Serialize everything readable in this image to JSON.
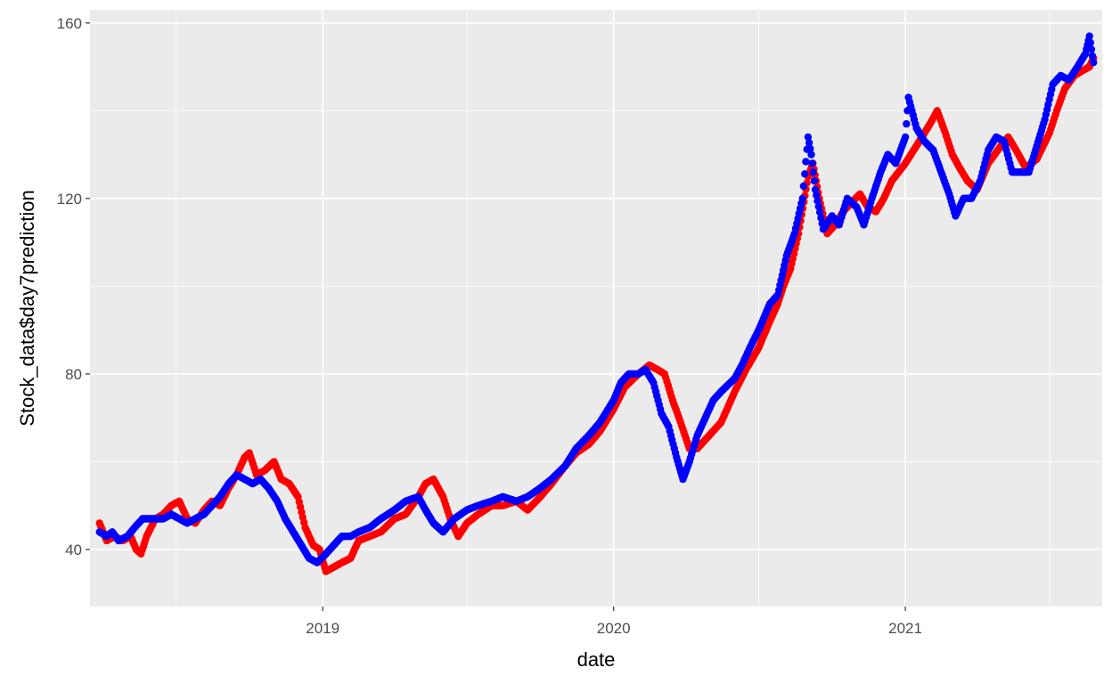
{
  "chart_data": {
    "type": "scatter",
    "title": "",
    "xlabel": "date",
    "ylabel": "Stock_data$day7prediction",
    "x_range": [
      "2018-03-15",
      "2021-09-05"
    ],
    "ylim": [
      27,
      163
    ],
    "x_ticks": [
      {
        "value": "2019-01-01",
        "label": "2019"
      },
      {
        "value": "2020-01-01",
        "label": "2020"
      },
      {
        "value": "2021-01-01",
        "label": "2021"
      }
    ],
    "y_ticks": [
      {
        "value": 40,
        "label": "40"
      },
      {
        "value": 80,
        "label": "80"
      },
      {
        "value": 120,
        "label": "120"
      },
      {
        "value": 160,
        "label": "160"
      }
    ],
    "grid": true,
    "panel_background": "#ebebeb",
    "grid_color": "#ffffff",
    "legend": "none",
    "series": [
      {
        "color": "#ff0000",
        "points": [
          [
            "2018-03-27",
            46
          ],
          [
            "2018-04-05",
            42
          ],
          [
            "2018-04-15",
            43
          ],
          [
            "2018-04-25",
            42
          ],
          [
            "2018-05-05",
            43
          ],
          [
            "2018-05-12",
            40
          ],
          [
            "2018-05-18",
            39
          ],
          [
            "2018-05-25",
            43
          ],
          [
            "2018-06-05",
            47
          ],
          [
            "2018-06-15",
            48
          ],
          [
            "2018-06-25",
            50
          ],
          [
            "2018-07-05",
            51
          ],
          [
            "2018-07-15",
            47
          ],
          [
            "2018-07-25",
            46
          ],
          [
            "2018-08-05",
            49
          ],
          [
            "2018-08-15",
            51
          ],
          [
            "2018-08-25",
            50
          ],
          [
            "2018-09-05",
            54
          ],
          [
            "2018-09-15",
            57
          ],
          [
            "2018-09-25",
            61
          ],
          [
            "2018-10-01",
            62
          ],
          [
            "2018-10-10",
            57
          ],
          [
            "2018-10-20",
            58
          ],
          [
            "2018-11-01",
            60
          ],
          [
            "2018-11-10",
            56
          ],
          [
            "2018-11-20",
            55
          ],
          [
            "2018-12-01",
            52
          ],
          [
            "2018-12-10",
            45
          ],
          [
            "2018-12-20",
            41
          ],
          [
            "2018-12-28",
            40
          ],
          [
            "2019-01-05",
            35
          ],
          [
            "2019-01-15",
            36
          ],
          [
            "2019-01-25",
            37
          ],
          [
            "2019-02-05",
            38
          ],
          [
            "2019-02-15",
            42
          ],
          [
            "2019-03-01",
            43
          ],
          [
            "2019-03-15",
            44
          ],
          [
            "2019-04-01",
            47
          ],
          [
            "2019-04-15",
            48
          ],
          [
            "2019-05-01",
            52
          ],
          [
            "2019-05-10",
            55
          ],
          [
            "2019-05-20",
            56
          ],
          [
            "2019-06-01",
            52
          ],
          [
            "2019-06-10",
            47
          ],
          [
            "2019-06-20",
            43
          ],
          [
            "2019-07-01",
            46
          ],
          [
            "2019-07-15",
            48
          ],
          [
            "2019-08-01",
            50
          ],
          [
            "2019-08-15",
            50
          ],
          [
            "2019-09-01",
            51
          ],
          [
            "2019-09-15",
            49
          ],
          [
            "2019-10-01",
            52
          ],
          [
            "2019-10-15",
            55
          ],
          [
            "2019-11-01",
            59
          ],
          [
            "2019-11-15",
            62
          ],
          [
            "2019-12-01",
            64
          ],
          [
            "2019-12-15",
            67
          ],
          [
            "2020-01-01",
            72
          ],
          [
            "2020-01-15",
            77
          ],
          [
            "2020-02-01",
            80
          ],
          [
            "2020-02-15",
            82
          ],
          [
            "2020-02-25",
            81
          ],
          [
            "2020-03-05",
            80
          ],
          [
            "2020-03-15",
            74
          ],
          [
            "2020-03-25",
            69
          ],
          [
            "2020-04-05",
            63
          ],
          [
            "2020-04-15",
            63
          ],
          [
            "2020-04-25",
            65
          ],
          [
            "2020-05-05",
            67
          ],
          [
            "2020-05-15",
            69
          ],
          [
            "2020-06-01",
            76
          ],
          [
            "2020-06-15",
            81
          ],
          [
            "2020-07-01",
            86
          ],
          [
            "2020-07-15",
            92
          ],
          [
            "2020-07-25",
            96
          ],
          [
            "2020-08-01",
            100
          ],
          [
            "2020-08-10",
            104
          ],
          [
            "2020-08-20",
            112
          ],
          [
            "2020-09-01",
            125
          ],
          [
            "2020-09-07",
            128
          ],
          [
            "2020-09-15",
            120
          ],
          [
            "2020-09-25",
            112
          ],
          [
            "2020-10-05",
            114
          ],
          [
            "2020-10-15",
            117
          ],
          [
            "2020-10-25",
            119
          ],
          [
            "2020-11-05",
            121
          ],
          [
            "2020-11-15",
            118
          ],
          [
            "2020-11-25",
            117
          ],
          [
            "2020-12-05",
            120
          ],
          [
            "2020-12-15",
            124
          ],
          [
            "2021-01-01",
            128
          ],
          [
            "2021-01-15",
            132
          ],
          [
            "2021-02-01",
            137
          ],
          [
            "2021-02-10",
            140
          ],
          [
            "2021-02-20",
            135
          ],
          [
            "2021-03-01",
            130
          ],
          [
            "2021-03-10",
            127
          ],
          [
            "2021-03-20",
            124
          ],
          [
            "2021-04-01",
            122
          ],
          [
            "2021-04-15",
            128
          ],
          [
            "2021-05-01",
            132
          ],
          [
            "2021-05-10",
            134
          ],
          [
            "2021-05-20",
            131
          ],
          [
            "2021-06-01",
            127
          ],
          [
            "2021-06-15",
            129
          ],
          [
            "2021-07-01",
            135
          ],
          [
            "2021-07-10",
            140
          ],
          [
            "2021-07-20",
            145
          ],
          [
            "2021-08-01",
            148
          ],
          [
            "2021-08-10",
            149
          ],
          [
            "2021-08-20",
            150
          ],
          [
            "2021-08-25",
            152
          ]
        ]
      },
      {
        "color": "#0000ff",
        "points": [
          [
            "2018-03-27",
            44
          ],
          [
            "2018-04-05",
            43
          ],
          [
            "2018-04-12",
            44
          ],
          [
            "2018-04-20",
            42
          ],
          [
            "2018-05-01",
            43
          ],
          [
            "2018-05-10",
            45
          ],
          [
            "2018-05-20",
            47
          ],
          [
            "2018-06-01",
            47
          ],
          [
            "2018-06-15",
            47
          ],
          [
            "2018-06-25",
            48
          ],
          [
            "2018-07-05",
            47
          ],
          [
            "2018-07-15",
            46
          ],
          [
            "2018-07-25",
            47
          ],
          [
            "2018-08-05",
            48
          ],
          [
            "2018-08-15",
            50
          ],
          [
            "2018-08-25",
            52
          ],
          [
            "2018-09-05",
            55
          ],
          [
            "2018-09-15",
            57
          ],
          [
            "2018-09-25",
            56
          ],
          [
            "2018-10-05",
            55
          ],
          [
            "2018-10-15",
            56
          ],
          [
            "2018-10-25",
            54
          ],
          [
            "2018-11-05",
            51
          ],
          [
            "2018-11-15",
            47
          ],
          [
            "2018-11-25",
            44
          ],
          [
            "2018-12-05",
            41
          ],
          [
            "2018-12-15",
            38
          ],
          [
            "2018-12-25",
            37
          ],
          [
            "2019-01-05",
            39
          ],
          [
            "2019-01-15",
            41
          ],
          [
            "2019-01-25",
            43
          ],
          [
            "2019-02-05",
            43
          ],
          [
            "2019-02-15",
            44
          ],
          [
            "2019-03-01",
            45
          ],
          [
            "2019-03-15",
            47
          ],
          [
            "2019-04-01",
            49
          ],
          [
            "2019-04-15",
            51
          ],
          [
            "2019-05-01",
            52
          ],
          [
            "2019-05-10",
            49
          ],
          [
            "2019-05-20",
            46
          ],
          [
            "2019-06-01",
            44
          ],
          [
            "2019-06-15",
            47
          ],
          [
            "2019-07-01",
            49
          ],
          [
            "2019-07-15",
            50
          ],
          [
            "2019-08-01",
            51
          ],
          [
            "2019-08-15",
            52
          ],
          [
            "2019-09-01",
            51
          ],
          [
            "2019-09-15",
            52
          ],
          [
            "2019-10-01",
            54
          ],
          [
            "2019-10-15",
            56
          ],
          [
            "2019-11-01",
            59
          ],
          [
            "2019-11-15",
            63
          ],
          [
            "2019-12-01",
            66
          ],
          [
            "2019-12-15",
            69
          ],
          [
            "2020-01-01",
            74
          ],
          [
            "2020-01-10",
            78
          ],
          [
            "2020-01-20",
            80
          ],
          [
            "2020-02-01",
            80
          ],
          [
            "2020-02-10",
            81
          ],
          [
            "2020-02-20",
            78
          ],
          [
            "2020-03-01",
            71
          ],
          [
            "2020-03-10",
            68
          ],
          [
            "2020-03-20",
            61
          ],
          [
            "2020-03-28",
            56
          ],
          [
            "2020-04-05",
            60
          ],
          [
            "2020-04-15",
            66
          ],
          [
            "2020-04-25",
            70
          ],
          [
            "2020-05-05",
            74
          ],
          [
            "2020-05-15",
            76
          ],
          [
            "2020-06-01",
            79
          ],
          [
            "2020-06-10",
            82
          ],
          [
            "2020-06-20",
            86
          ],
          [
            "2020-07-01",
            90
          ],
          [
            "2020-07-15",
            96
          ],
          [
            "2020-07-25",
            98
          ],
          [
            "2020-08-05",
            107
          ],
          [
            "2020-08-15",
            112
          ],
          [
            "2020-08-25",
            120
          ],
          [
            "2020-09-01",
            134
          ],
          [
            "2020-09-05",
            130
          ],
          [
            "2020-09-10",
            122
          ],
          [
            "2020-09-20",
            113
          ],
          [
            "2020-10-01",
            116
          ],
          [
            "2020-10-10",
            114
          ],
          [
            "2020-10-20",
            120
          ],
          [
            "2020-11-01",
            118
          ],
          [
            "2020-11-10",
            114
          ],
          [
            "2020-11-20",
            120
          ],
          [
            "2020-12-01",
            126
          ],
          [
            "2020-12-10",
            130
          ],
          [
            "2020-12-20",
            128
          ],
          [
            "2021-01-01",
            134
          ],
          [
            "2021-01-05",
            143
          ],
          [
            "2021-01-15",
            136
          ],
          [
            "2021-01-25",
            133
          ],
          [
            "2021-02-05",
            131
          ],
          [
            "2021-02-15",
            126
          ],
          [
            "2021-02-25",
            121
          ],
          [
            "2021-03-05",
            116
          ],
          [
            "2021-03-15",
            120
          ],
          [
            "2021-03-25",
            120
          ],
          [
            "2021-04-05",
            124
          ],
          [
            "2021-04-15",
            131
          ],
          [
            "2021-04-25",
            134
          ],
          [
            "2021-05-05",
            133
          ],
          [
            "2021-05-15",
            126
          ],
          [
            "2021-05-25",
            126
          ],
          [
            "2021-06-05",
            126
          ],
          [
            "2021-06-15",
            132
          ],
          [
            "2021-06-25",
            138
          ],
          [
            "2021-07-05",
            146
          ],
          [
            "2021-07-15",
            148
          ],
          [
            "2021-07-25",
            147
          ],
          [
            "2021-08-05",
            150
          ],
          [
            "2021-08-15",
            153
          ],
          [
            "2021-08-20",
            157
          ],
          [
            "2021-08-25",
            151
          ]
        ]
      }
    ]
  }
}
